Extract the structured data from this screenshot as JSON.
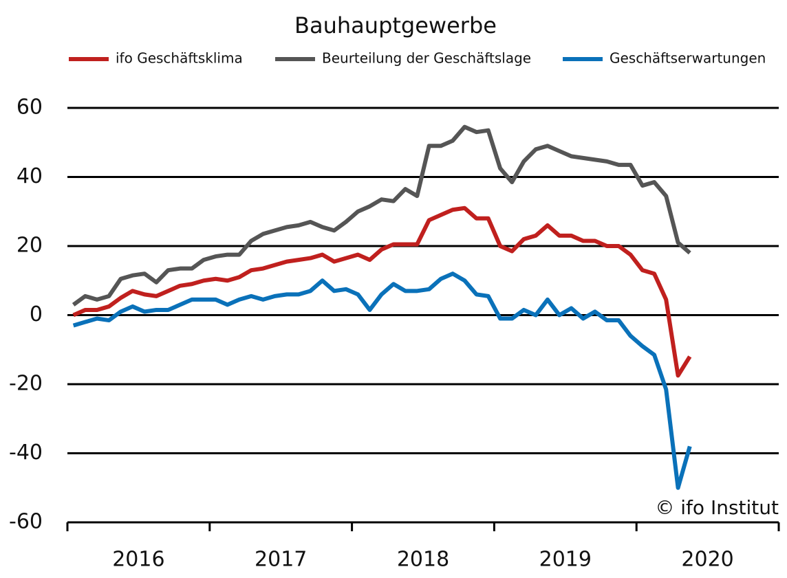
{
  "chart_data": {
    "type": "line",
    "title": "Bauhauptgewerbe",
    "annotation": "© ifo Institut",
    "x": [
      2016.042,
      2016.125,
      2016.208,
      2016.292,
      2016.375,
      2016.458,
      2016.542,
      2016.625,
      2016.708,
      2016.792,
      2016.875,
      2016.958,
      2017.042,
      2017.125,
      2017.208,
      2017.292,
      2017.375,
      2017.458,
      2017.542,
      2017.625,
      2017.708,
      2017.792,
      2017.875,
      2017.958,
      2018.042,
      2018.125,
      2018.208,
      2018.292,
      2018.375,
      2018.458,
      2018.542,
      2018.625,
      2018.708,
      2018.792,
      2018.875,
      2018.958,
      2019.042,
      2019.125,
      2019.208,
      2019.292,
      2019.375,
      2019.458,
      2019.542,
      2019.625,
      2019.708,
      2019.792,
      2019.875,
      2019.958,
      2020.042,
      2020.125,
      2020.208,
      2020.292,
      2020.375
    ],
    "series": [
      {
        "name": "ifo Geschäftsklima",
        "color": "#c0201e",
        "values": [
          0,
          1.5,
          1.5,
          2.5,
          5,
          7,
          6,
          5.5,
          7,
          8.5,
          9,
          10,
          10.5,
          10,
          11,
          13,
          13.5,
          14.5,
          15.5,
          16,
          16.5,
          17.5,
          15.5,
          16.5,
          17.5,
          16,
          19,
          20.5,
          20.5,
          20.5,
          27.5,
          29,
          30.5,
          31,
          28,
          28,
          20,
          18.5,
          22,
          23,
          26,
          23,
          23,
          21.5,
          21.5,
          20,
          20,
          17.5,
          13,
          12,
          4.5,
          -17.5,
          -12
        ]
      },
      {
        "name": "Beurteilung der Geschäftslage",
        "color": "#555555",
        "values": [
          3,
          5.5,
          4.5,
          5.5,
          10.5,
          11.5,
          12,
          9.5,
          13,
          13.5,
          13.5,
          16,
          17,
          17.5,
          17.5,
          21.5,
          23.5,
          24.5,
          25.5,
          26,
          27,
          25.5,
          24.5,
          27,
          30,
          31.5,
          33.5,
          33,
          36.5,
          34.5,
          49,
          49,
          50.5,
          54.5,
          53,
          53.5,
          42.5,
          38.5,
          44.5,
          48,
          49,
          47.5,
          46,
          45.5,
          45,
          44.5,
          43.5,
          43.5,
          37.5,
          38.5,
          34.5,
          21,
          18
        ]
      },
      {
        "name": "Geschäftserwartungen",
        "color": "#0a71b9",
        "values": [
          -3,
          -2,
          -1,
          -1.5,
          1,
          2.5,
          1,
          1.5,
          1.5,
          3,
          4.5,
          4.5,
          4.5,
          3,
          4.5,
          5.5,
          4.5,
          5.5,
          6,
          6,
          7,
          10,
          7,
          7.5,
          6,
          1.5,
          6,
          9,
          7,
          7,
          7.5,
          10.5,
          12,
          10,
          6,
          5.5,
          -1,
          -1,
          1.5,
          0,
          4.5,
          0,
          2,
          -1,
          1,
          -1.5,
          -1.5,
          -6,
          -9,
          -11.5,
          -21.5,
          -50,
          -38
        ]
      }
    ],
    "xlim": [
      2016,
      2021
    ],
    "xticks": [
      {
        "value": 2016.5,
        "label": "2016"
      },
      {
        "value": 2017.5,
        "label": "2017"
      },
      {
        "value": 2018.5,
        "label": "2018"
      },
      {
        "value": 2019.5,
        "label": "2019"
      },
      {
        "value": 2020.5,
        "label": "2020"
      }
    ],
    "ylim": [
      -60,
      60
    ],
    "yticks": [
      -60,
      -40,
      -20,
      0,
      20,
      40,
      60
    ],
    "grid": true,
    "legend": "top"
  }
}
